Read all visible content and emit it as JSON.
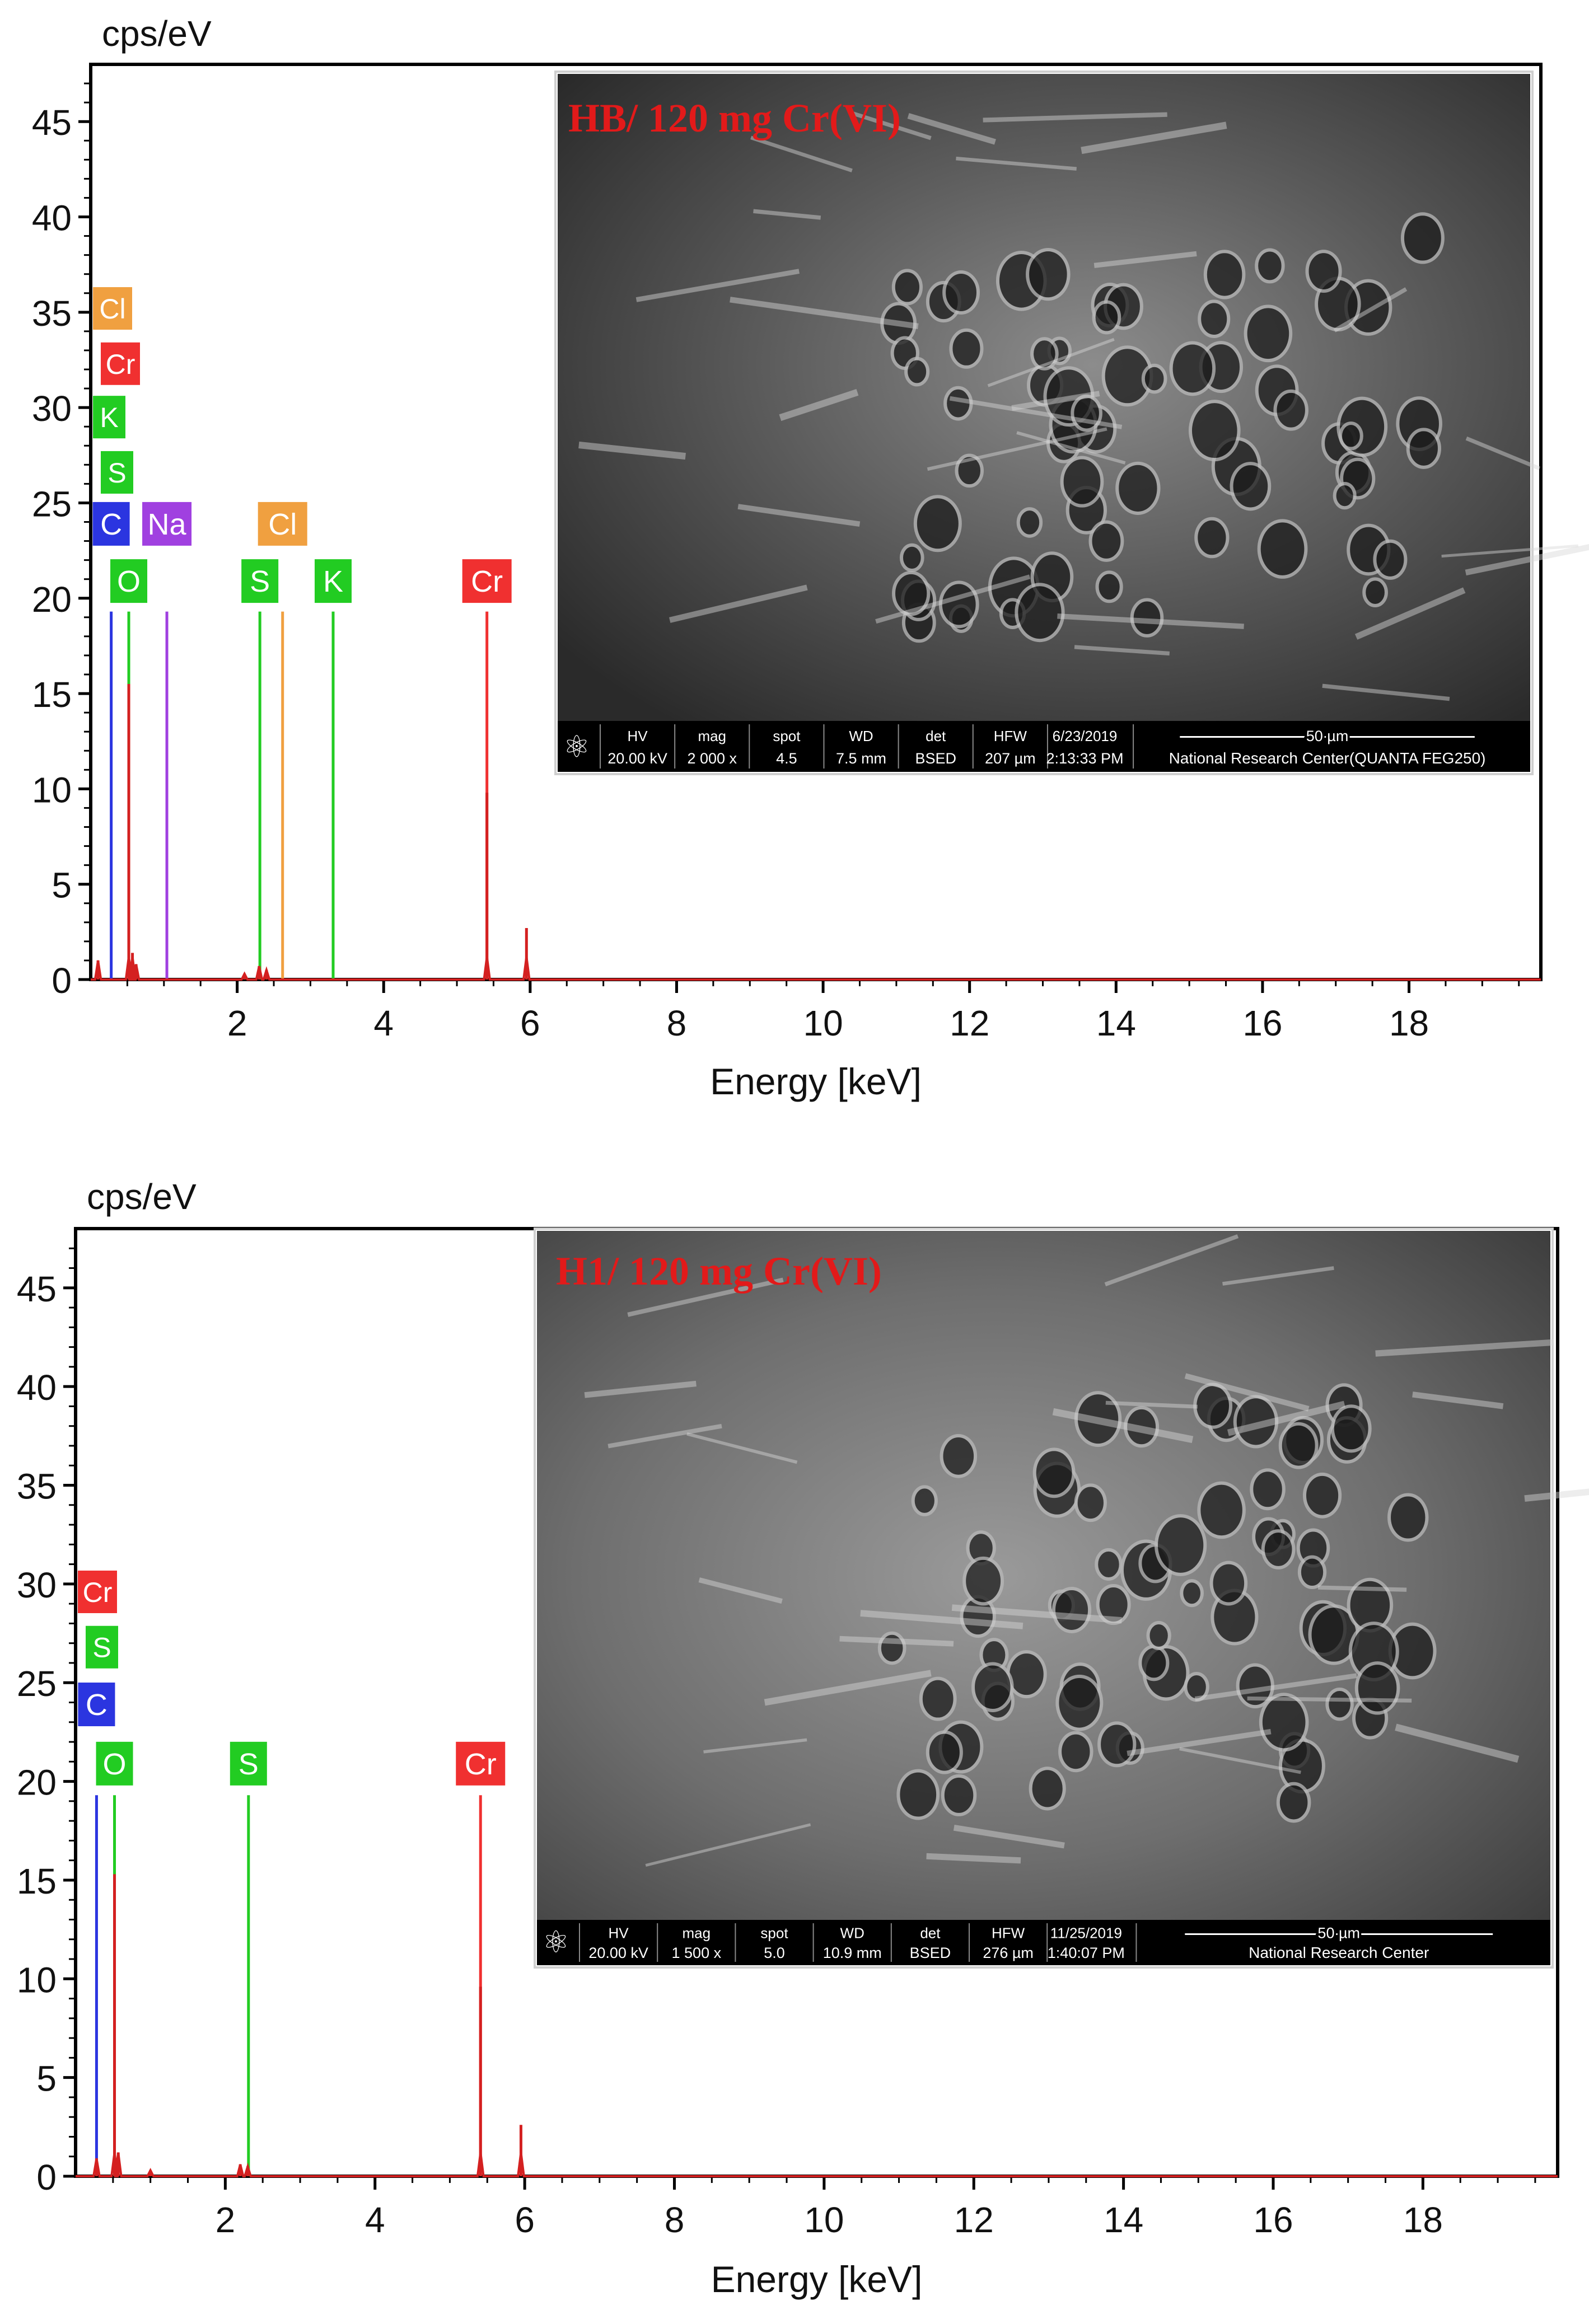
{
  "chart_data": [
    {
      "type": "line",
      "chart_kind": "EDS spectrum with SEM micrograph inset",
      "ylabel": "cps/eV",
      "xlabel": "Energy [keV]",
      "xlim": [
        0,
        19.8
      ],
      "ylim": [
        0,
        48
      ],
      "x_ticks": [
        2,
        4,
        6,
        8,
        10,
        12,
        14,
        16,
        18
      ],
      "x_tick_labels": [
        "2",
        "4",
        "6",
        "8",
        "10",
        "12",
        "14",
        "16",
        "18"
      ],
      "y_ticks": [
        0,
        5,
        10,
        15,
        20,
        25,
        30,
        35,
        40,
        45
      ],
      "y_tick_labels": [
        "0",
        "5",
        "10",
        "15",
        "20",
        "25",
        "30",
        "35",
        "40",
        "45"
      ],
      "grid": false,
      "series": [
        {
          "color": "#d42020",
          "points": [
            {
              "x": 0.1,
              "y": 1.0
            },
            {
              "x": 0.52,
              "y": 15.5
            },
            {
              "x": 0.57,
              "y": 1.4
            },
            {
              "x": 0.62,
              "y": 0.8
            },
            {
              "x": 2.1,
              "y": 0.3
            },
            {
              "x": 2.3,
              "y": 0.7
            },
            {
              "x": 2.4,
              "y": 0.5
            },
            {
              "x": 5.41,
              "y": 9.8
            },
            {
              "x": 5.95,
              "y": 2.7
            }
          ]
        }
      ],
      "element_lines": [
        {
          "label": "C",
          "x": 0.28,
          "color": "#2b35e0",
          "box_y": 23.9
        },
        {
          "label": "O",
          "x": 0.52,
          "color": "#22cc22",
          "box_y": 20.9
        },
        {
          "label": "Na",
          "x": 1.04,
          "color": "#a040e0",
          "box_y": 23.9
        },
        {
          "label": "S",
          "x": 2.31,
          "color": "#22cc22",
          "box_y": 20.9
        },
        {
          "label": "Cl",
          "x": 2.62,
          "color": "#f0a040",
          "box_y": 23.9
        },
        {
          "label": "K",
          "x": 3.31,
          "color": "#22cc22",
          "box_y": 20.9
        },
        {
          "label": "Cr",
          "x": 5.41,
          "color": "#f03030",
          "box_y": 20.9
        }
      ],
      "left_stack_labels": [
        {
          "label": "Cl",
          "color": "#f0a040",
          "box_y": 35.2
        },
        {
          "label": "Cr",
          "color": "#f03030",
          "box_y": 32.3
        },
        {
          "label": "K",
          "color": "#22cc22",
          "box_y": 29.5
        },
        {
          "label": "S",
          "color": "#22cc22",
          "box_y": 26.6
        }
      ],
      "inset": {
        "title": "HB/ 120 mg Cr(VI)",
        "title_color": "#e21a1a",
        "info_bar": [
          {
            "head": "HV",
            "value": "20.00 kV"
          },
          {
            "head": "mag",
            "value": "2 000 x"
          },
          {
            "head": "spot",
            "value": "4.5"
          },
          {
            "head": "WD",
            "value": "7.5 mm"
          },
          {
            "head": "det",
            "value": "BSED"
          },
          {
            "head": "HFW",
            "value": "207 µm"
          },
          {
            "head": "6/23/2019",
            "value": "2:13:33 PM"
          }
        ],
        "scale_bar": "50 µm",
        "footer": "National Research Center(QUANTA FEG250)"
      }
    },
    {
      "type": "line",
      "chart_kind": "EDS spectrum with SEM micrograph inset",
      "ylabel": "cps/eV",
      "xlabel": "Energy [keV]",
      "xlim": [
        0,
        19.8
      ],
      "ylim": [
        0,
        48
      ],
      "x_ticks": [
        2,
        4,
        6,
        8,
        10,
        12,
        14,
        16,
        18
      ],
      "x_tick_labels": [
        "2",
        "4",
        "6",
        "8",
        "10",
        "12",
        "14",
        "16",
        "18"
      ],
      "y_ticks": [
        0,
        5,
        10,
        15,
        20,
        25,
        30,
        35,
        40,
        45
      ],
      "y_tick_labels": [
        "0",
        "5",
        "10",
        "15",
        "20",
        "25",
        "30",
        "35",
        "40",
        "45"
      ],
      "grid": false,
      "series": [
        {
          "color": "#d42020",
          "points": [
            {
              "x": 0.28,
              "y": 0.9
            },
            {
              "x": 0.52,
              "y": 15.3
            },
            {
              "x": 0.57,
              "y": 1.2
            },
            {
              "x": 1.0,
              "y": 0.3
            },
            {
              "x": 2.2,
              "y": 0.6
            },
            {
              "x": 2.3,
              "y": 0.5
            },
            {
              "x": 5.41,
              "y": 9.6
            },
            {
              "x": 5.95,
              "y": 2.6
            }
          ]
        }
      ],
      "element_lines": [
        {
          "label": "C",
          "x": 0.28,
          "color": "#2b35e0",
          "box_y": 23.9
        },
        {
          "label": "O",
          "x": 0.52,
          "color": "#22cc22",
          "box_y": 20.9
        },
        {
          "label": "S",
          "x": 2.31,
          "color": "#22cc22",
          "box_y": 20.9
        },
        {
          "label": "Cr",
          "x": 5.41,
          "color": "#f03030",
          "box_y": 20.9
        }
      ],
      "left_stack_labels": [
        {
          "label": "Cr",
          "color": "#f03030",
          "box_y": 29.6
        },
        {
          "label": "S",
          "color": "#22cc22",
          "box_y": 26.8
        }
      ],
      "inset": {
        "title": "H1/ 120 mg Cr(VI)",
        "title_color": "#e21a1a",
        "info_bar": [
          {
            "head": "HV",
            "value": "20.00 kV"
          },
          {
            "head": "mag",
            "value": "1 500 x"
          },
          {
            "head": "spot",
            "value": "5.0"
          },
          {
            "head": "WD",
            "value": "10.9 mm"
          },
          {
            "head": "det",
            "value": "BSED"
          },
          {
            "head": "HFW",
            "value": "276 µm"
          },
          {
            "head": "11/25/2019",
            "value": "1:40:07 PM"
          }
        ],
        "scale_bar": "50 µm",
        "footer": "National Research Center"
      }
    }
  ]
}
